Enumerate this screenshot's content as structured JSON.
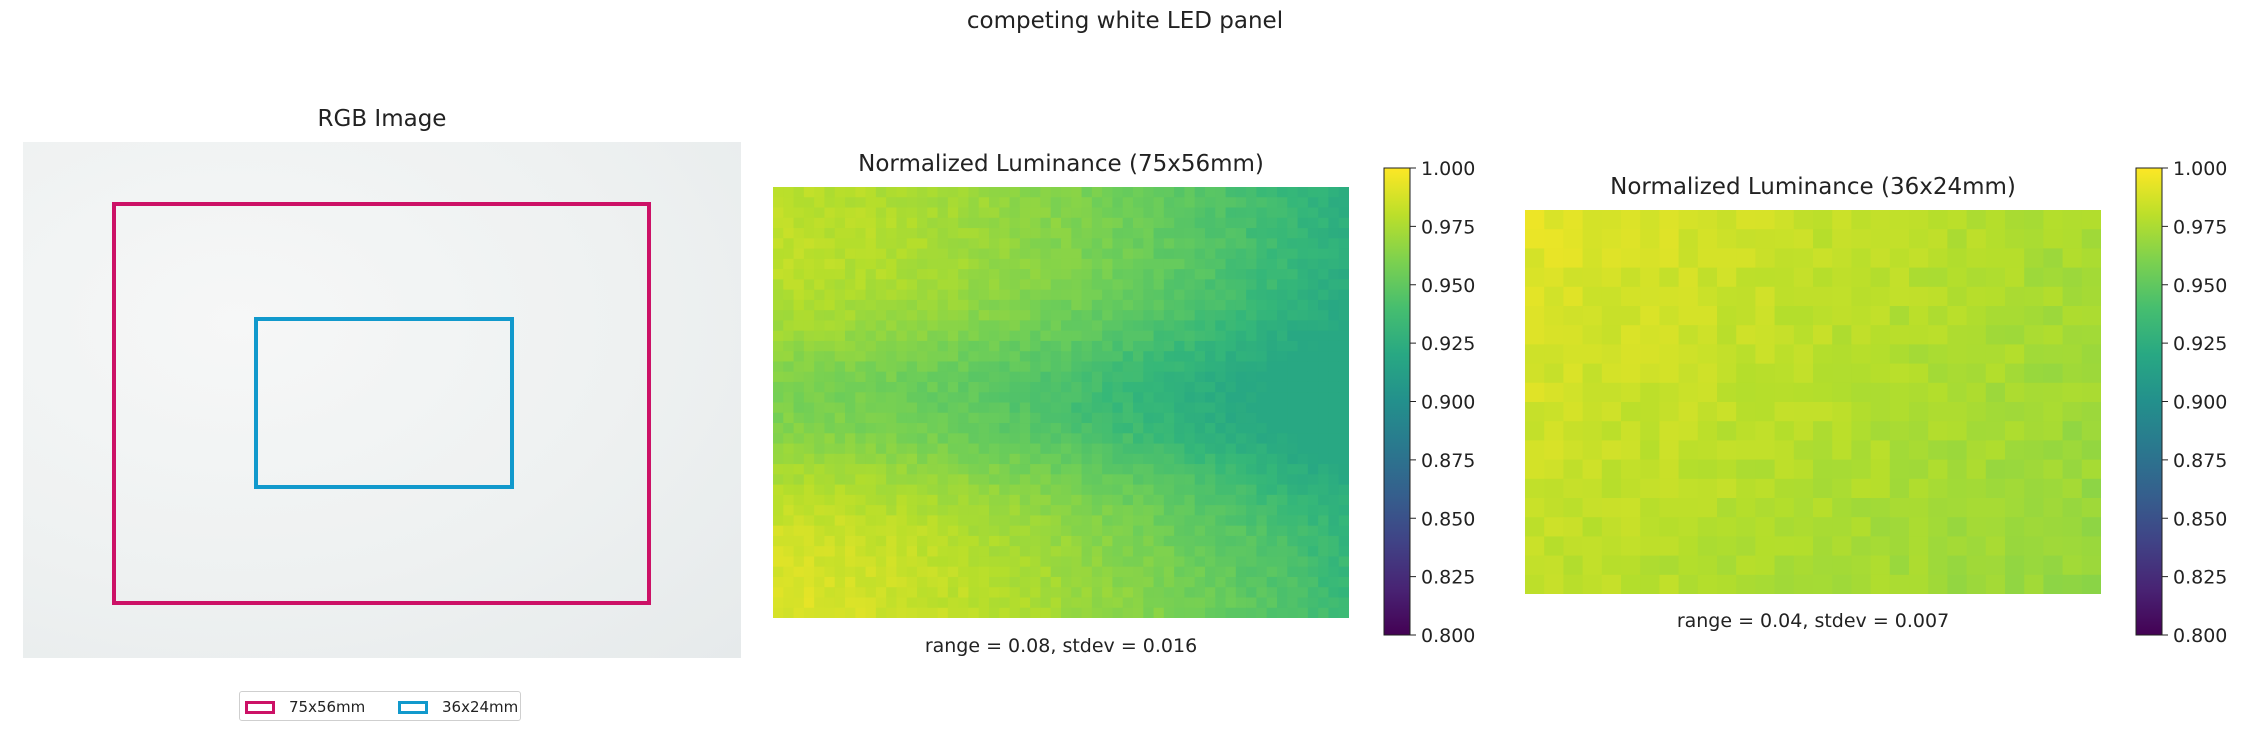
{
  "figure": {
    "title": "competing white LED panel"
  },
  "rgb_panel": {
    "title": "RGB Image",
    "legend": [
      {
        "label": "75x56mm",
        "color": "#cc1166"
      },
      {
        "label": "36x24mm",
        "color": "#1199cc"
      }
    ]
  },
  "chart_data": [
    {
      "type": "heatmap",
      "title": "Normalized Luminance (75x56mm)",
      "annotation": "range = 0.08, stdev = 0.016",
      "grid": {
        "cols": 56,
        "rows": 42
      },
      "value_range": [
        0.92,
        1.0
      ],
      "colorbar": {
        "ticks": [
          "1.000",
          "0.975",
          "0.950",
          "0.925",
          "0.900",
          "0.875",
          "0.850",
          "0.825",
          "0.800"
        ],
        "range": [
          0.8,
          1.0
        ],
        "colormap": "viridis"
      }
    },
    {
      "type": "heatmap",
      "title": "Normalized Luminance (36x24mm)",
      "annotation": "range = 0.04, stdev = 0.007",
      "grid": {
        "cols": 30,
        "rows": 20
      },
      "value_range": [
        0.96,
        1.0
      ],
      "colorbar": {
        "ticks": [
          "1.000",
          "0.975",
          "0.950",
          "0.925",
          "0.900",
          "0.875",
          "0.850",
          "0.825",
          "0.800"
        ],
        "range": [
          0.8,
          1.0
        ],
        "colormap": "viridis"
      }
    }
  ]
}
